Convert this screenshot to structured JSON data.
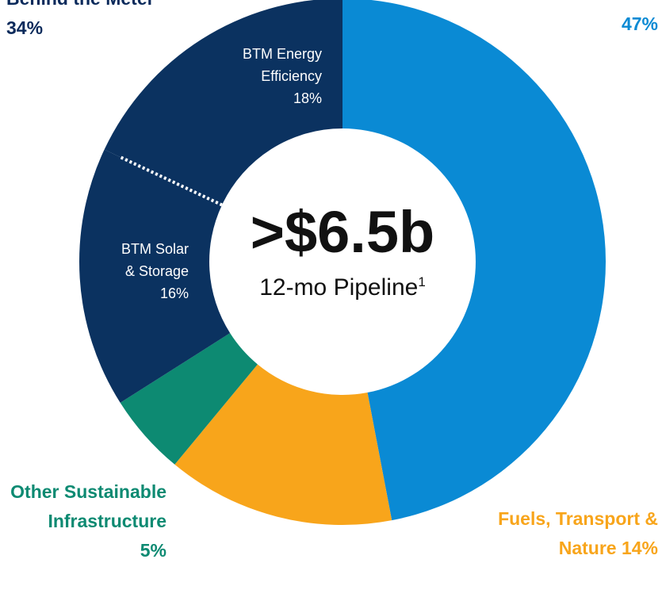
{
  "chart_data": {
    "type": "donut",
    "center_text": ">$6.5b",
    "center_subtitle": "12-mo Pipeline",
    "center_footnote": "1",
    "categories": [
      null,
      "Fuels, Transport & Nature",
      "Other Sustainable Infrastructure",
      "BTM Solar & Storage",
      "BTM Energy Efficiency"
    ],
    "values": [
      47,
      14,
      5,
      16,
      18
    ],
    "value_labels": [
      "47%",
      "14%",
      "5%",
      "16%",
      "18%"
    ],
    "colors": [
      "#0a8ad4",
      "#f8a51b",
      "#0d8a72",
      "#0b3260",
      "#0b3260"
    ],
    "groups": [
      {
        "name": "Behind the Meter",
        "value": 34,
        "value_label": "34%"
      }
    ]
  }
}
